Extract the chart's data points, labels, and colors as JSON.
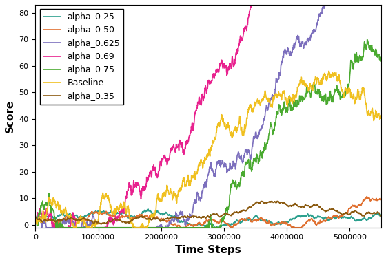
{
  "title": "",
  "xlabel": "Time Steps",
  "ylabel": "Score",
  "xlim": [
    0,
    5500000
  ],
  "ylim": [
    -1,
    83
  ],
  "xticks": [
    0,
    1000000,
    2000000,
    3000000,
    4000000,
    5000000
  ],
  "yticks": [
    0,
    10,
    20,
    30,
    40,
    50,
    60,
    70,
    80
  ],
  "series": [
    {
      "label": "alpha_0.25",
      "color": "#2ca08e"
    },
    {
      "label": "alpha_0.50",
      "color": "#e07030"
    },
    {
      "label": "alpha_0.625",
      "color": "#7c6fbd"
    },
    {
      "label": "alpha_0.69",
      "color": "#e8218e"
    },
    {
      "label": "alpha_0.75",
      "color": "#4aaa30"
    },
    {
      "label": "Baseline",
      "color": "#f0c020"
    },
    {
      "label": "alpha_0.35",
      "color": "#8b5a10"
    }
  ],
  "n_points": 2000,
  "seed": 42,
  "figsize": [
    5.6,
    3.78
  ],
  "dpi": 100,
  "legend_fontsize": 9,
  "axis_label_fontsize": 11,
  "tick_fontsize": 8,
  "linewidth": 1.2
}
